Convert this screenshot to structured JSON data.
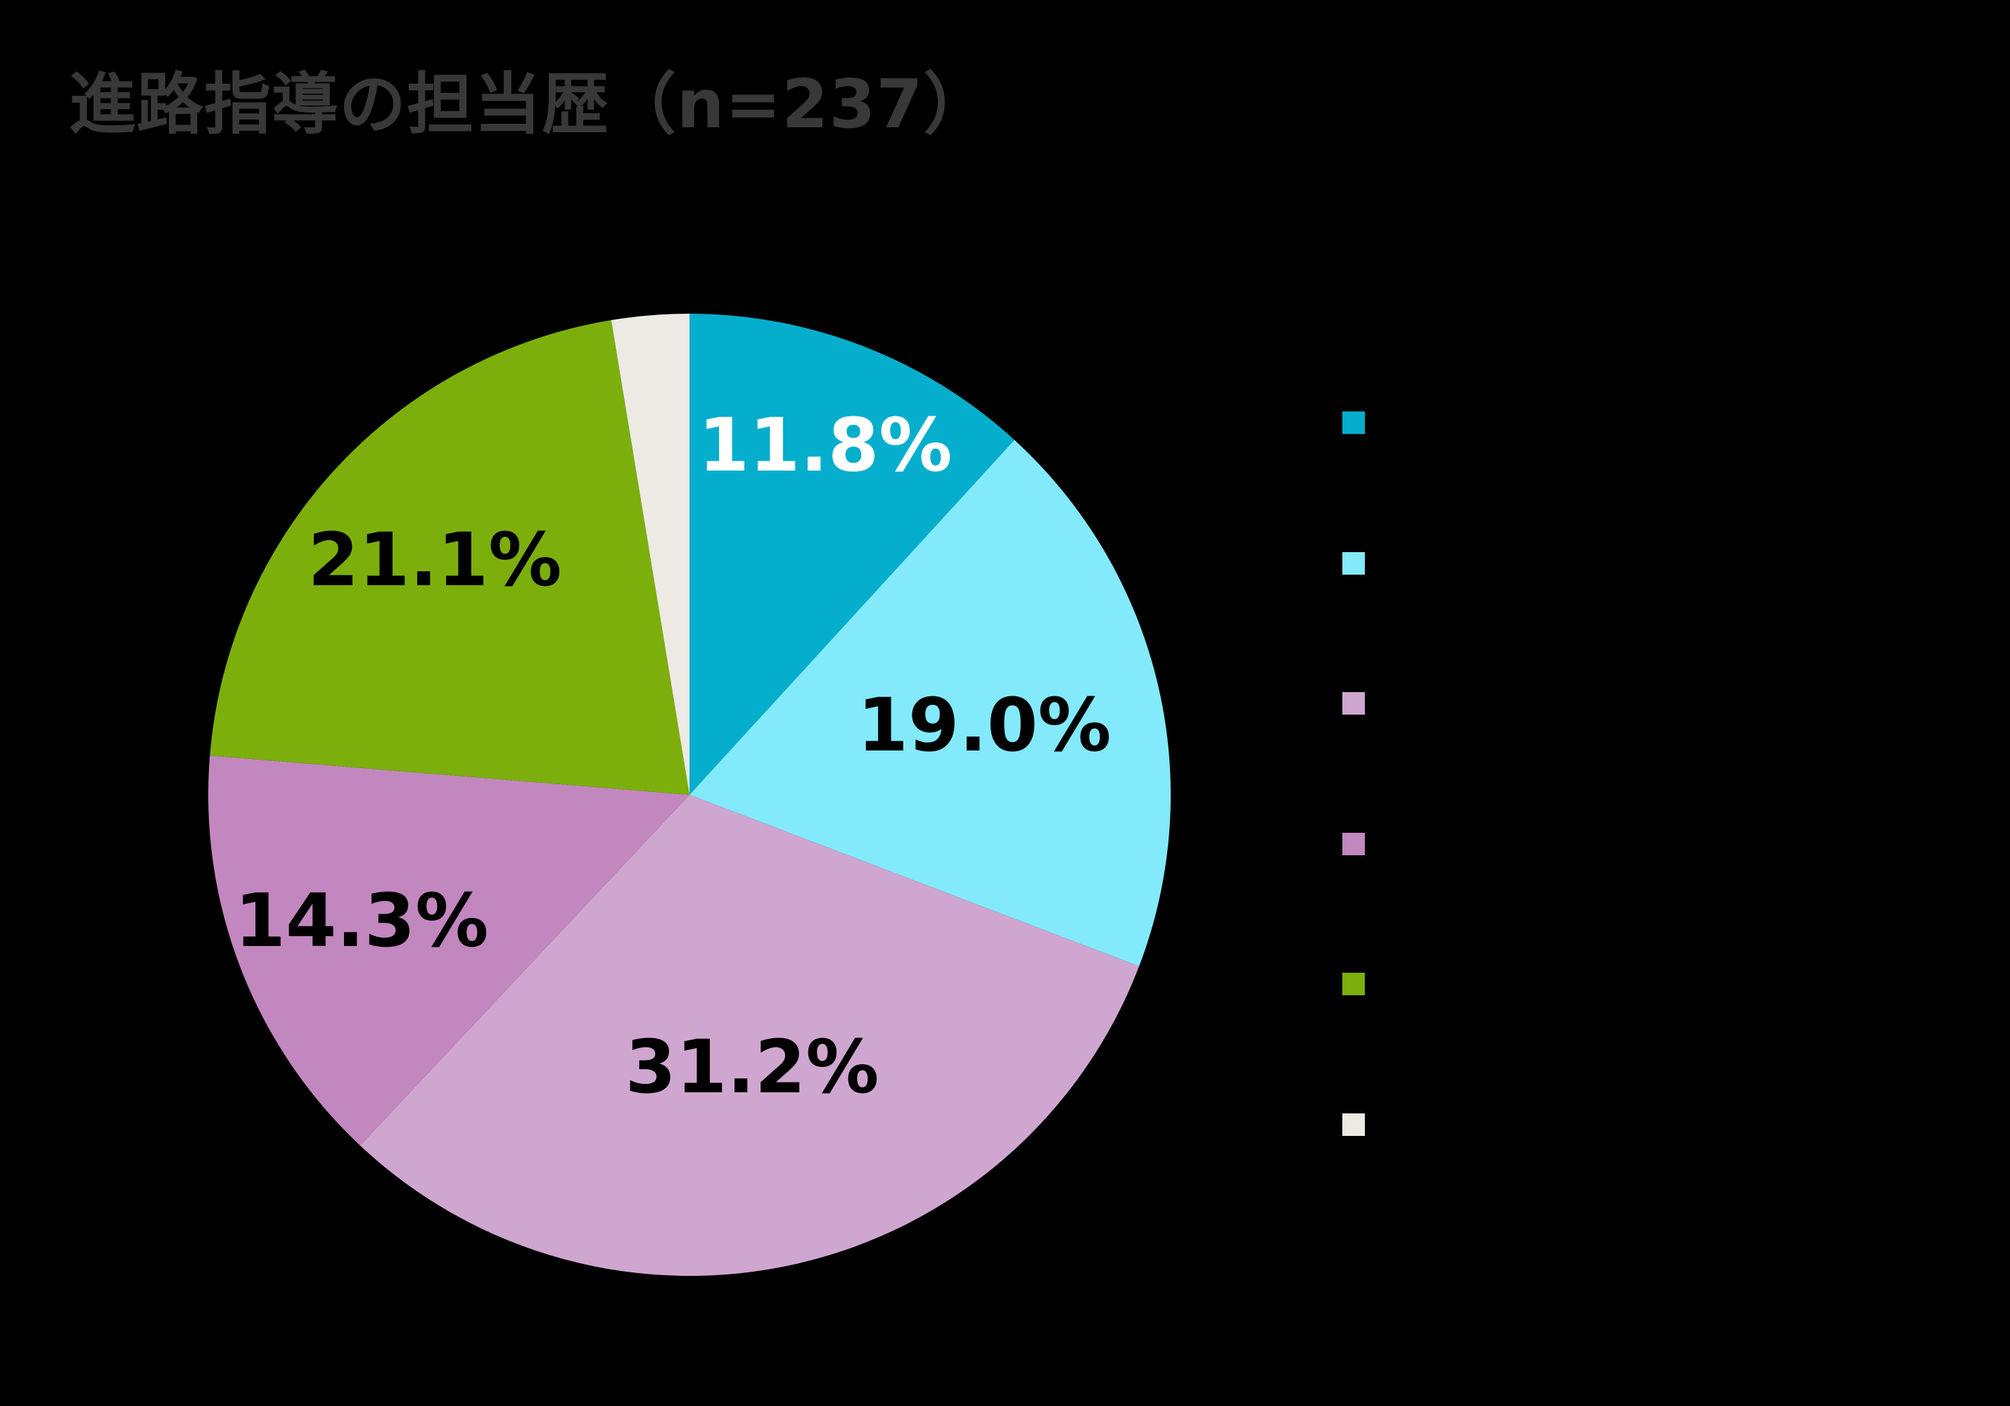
{
  "title": "進路指導の担当歴（n=237）",
  "colors": {
    "background": "#000000",
    "title_color": "#383838"
  },
  "chart_data": {
    "type": "pie",
    "title": "進路指導の担当歴（n=237）",
    "sample_size_text": "n=237",
    "legend_position": "right",
    "legend_labels_visible": false,
    "direction": "clockwise",
    "start_angle_deg": 0,
    "slices": [
      {
        "label": "",
        "value": 11.8,
        "display": "11.8%",
        "color": "#05AECD",
        "label_color": "#FFFFFF"
      },
      {
        "label": "",
        "value": 19.0,
        "display": "19.0%",
        "color": "#82EAFB",
        "label_color": "#000000"
      },
      {
        "label": "",
        "value": 31.2,
        "display": "31.2%",
        "color": "#CFA6CF",
        "label_color": "#000000"
      },
      {
        "label": "",
        "value": 14.3,
        "display": "14.3%",
        "color": "#C287BE",
        "label_color": "#000000"
      },
      {
        "label": "",
        "value": 21.1,
        "display": "21.1%",
        "color": "#7CAF0B",
        "label_color": "#000000"
      },
      {
        "label": "",
        "value": 2.6,
        "display": "",
        "color": "#EDEAE3",
        "label_color": "#000000"
      }
    ]
  }
}
